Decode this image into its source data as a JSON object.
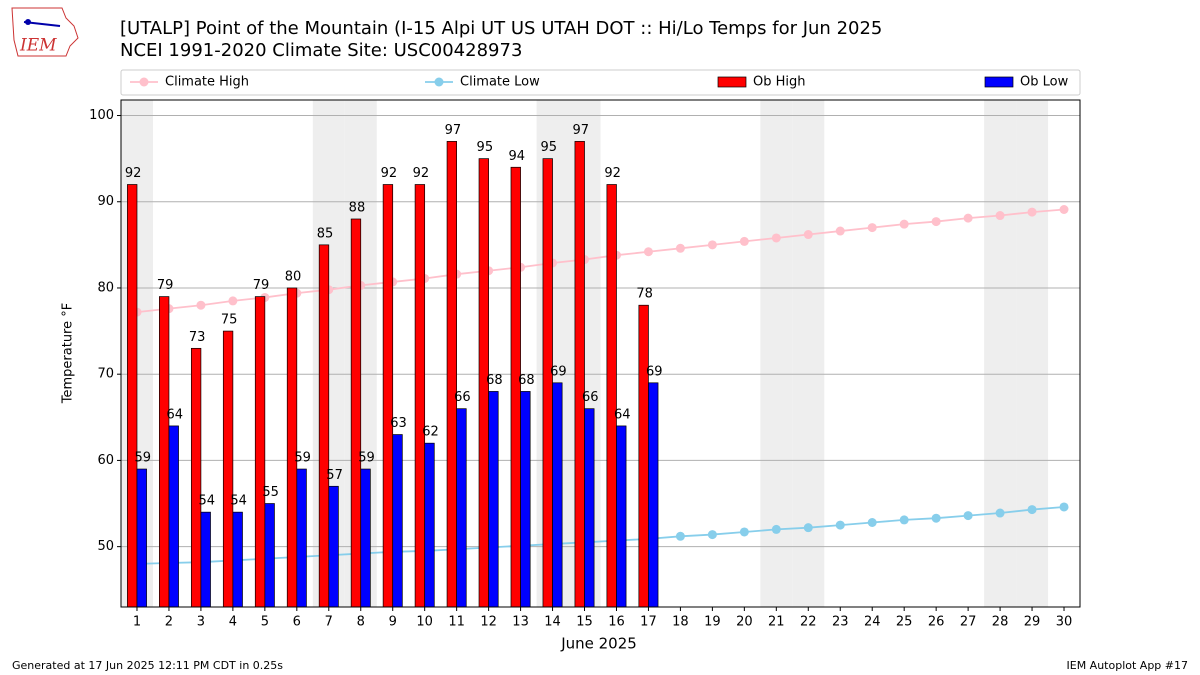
{
  "logo": "IEM",
  "footer": {
    "left": "Generated at 17 Jun 2025 12:11 PM CDT in 0.25s",
    "right": "IEM Autoplot App #17"
  },
  "chart_data": {
    "type": "bar",
    "title": [
      "[UTALP] Point of the Mountain (I-15 Alpi UT US UTAH DOT :: Hi/Lo Temps for Jun 2025",
      "NCEI 1991-2020 Climate Site: USC00428973"
    ],
    "x_label": "June 2025",
    "y_label": "Temperature °F",
    "categories": [
      "1",
      "2",
      "3",
      "4",
      "5",
      "6",
      "7",
      "8",
      "9",
      "10",
      "11",
      "12",
      "13",
      "14",
      "15",
      "16",
      "17",
      "18",
      "19",
      "20",
      "21",
      "22",
      "23",
      "24",
      "25",
      "26",
      "27",
      "28",
      "29",
      "30"
    ],
    "shaded_categories": [
      "1",
      "7",
      "8",
      "14",
      "15",
      "21",
      "22",
      "28",
      "29"
    ],
    "series": [
      {
        "name": "Climate High",
        "type": "line",
        "color": "#ffc0cb",
        "values": [
          77.2,
          77.6,
          78.0,
          78.5,
          78.9,
          79.4,
          79.8,
          80.3,
          80.7,
          81.1,
          81.6,
          82.0,
          82.4,
          82.9,
          83.3,
          83.8,
          84.2,
          84.6,
          85.0,
          85.4,
          85.8,
          86.2,
          86.6,
          87.0,
          87.4,
          87.7,
          88.1,
          88.4,
          88.8,
          89.1
        ]
      },
      {
        "name": "Climate Low",
        "type": "line",
        "color": "#87ceeb",
        "values": [
          48.0,
          48.1,
          48.2,
          48.4,
          48.6,
          48.8,
          49.0,
          49.2,
          49.4,
          49.5,
          49.7,
          49.9,
          50.1,
          50.3,
          50.5,
          50.7,
          50.9,
          51.2,
          51.4,
          51.7,
          52.0,
          52.2,
          52.5,
          52.8,
          53.1,
          53.3,
          53.6,
          53.9,
          54.3,
          54.6
        ]
      },
      {
        "name": "Ob High",
        "type": "bar",
        "color": "#ff0000",
        "values": [
          92,
          79,
          73,
          75,
          79,
          80,
          85,
          88,
          92,
          92,
          97,
          95,
          94,
          95,
          97,
          92,
          78,
          null,
          null,
          null,
          null,
          null,
          null,
          null,
          null,
          null,
          null,
          null,
          null,
          null
        ]
      },
      {
        "name": "Ob Low",
        "type": "bar",
        "color": "#0000ff",
        "values": [
          59,
          64,
          54,
          54,
          55,
          59,
          57,
          59,
          63,
          62,
          66,
          68,
          68,
          69,
          66,
          64,
          69,
          null,
          null,
          null,
          null,
          null,
          null,
          null,
          null,
          null,
          null,
          null,
          null,
          null
        ]
      }
    ],
    "ylim": [
      43,
      101.8
    ],
    "yticks": [
      50,
      60,
      70,
      80,
      90,
      100
    ],
    "grid": true,
    "legend": "top"
  }
}
